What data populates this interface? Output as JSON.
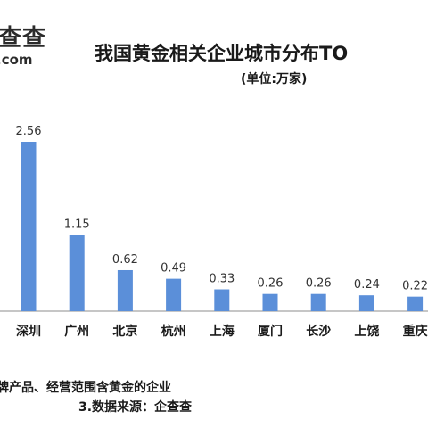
{
  "logo": {
    "brand": "查查",
    "url": ".com"
  },
  "header": {
    "title": "我国黄金相关企业城市分布TO",
    "unit": "(单位:万家)"
  },
  "footnotes": {
    "line1": "牌产品、经营范围含黄金的企业",
    "line2": "3.数据来源：企查查"
  },
  "colors": {
    "bar": "#5b8fd9",
    "axis": "#8c8c8c"
  },
  "chart_data": {
    "type": "bar",
    "title": "我国黄金相关企业城市分布TO",
    "subtitle": "(单位:万家)",
    "categories": [
      "深圳",
      "广州",
      "北京",
      "杭州",
      "上海",
      "厦门",
      "长沙",
      "上饶",
      "重庆"
    ],
    "values": [
      2.56,
      1.15,
      0.62,
      0.49,
      0.33,
      0.26,
      0.26,
      0.24,
      0.22
    ],
    "value_labels": [
      "2.56",
      "1.15",
      "0.62",
      "0.49",
      "0.33",
      "0.26",
      "0.26",
      "0.24",
      "0.22"
    ],
    "ylim": [
      0,
      2.56
    ],
    "grid": false,
    "legend": "none"
  }
}
